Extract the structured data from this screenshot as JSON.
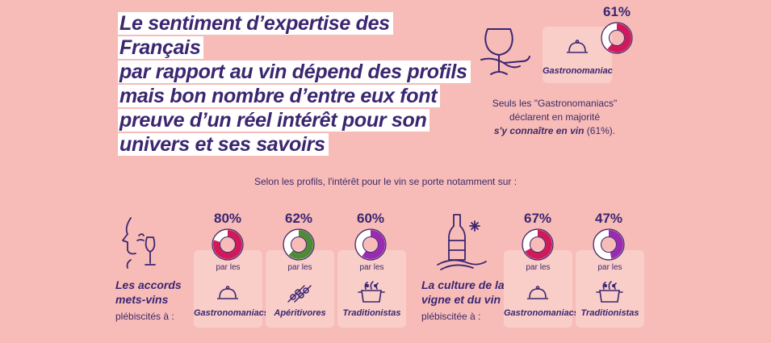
{
  "headline": {
    "lines": [
      "Le sentiment d’expertise des Français",
      "par rapport au vin dépend des profils",
      "mais bon nombre d’entre eux font",
      "preuve d’un réel intérêt pour son",
      "univers et ses savoirs"
    ]
  },
  "top": {
    "percent": "61%",
    "value": 0.61,
    "profile": "Gastronomaniac",
    "note_line1": "Seuls les \"Gastronomaniacs\"",
    "note_line2": "déclarent en majorité",
    "note_emph": "s'y connaître en vin",
    "note_tail": " (61%)."
  },
  "intro": "Selon les profils, l'intérêt pour le vin se porte notamment sur :",
  "left_block": {
    "title_line1": "Les accords",
    "title_line2": "mets-vins",
    "subtitle": "plébiscités à :",
    "items": [
      {
        "percent": "80%",
        "value": 0.8,
        "par": "par les",
        "label": "Gastronomaniacs",
        "color": "#d1195a"
      },
      {
        "percent": "62%",
        "value": 0.62,
        "par": "par les",
        "label": "Apéritivores",
        "color": "#4f8a36"
      },
      {
        "percent": "60%",
        "value": 0.6,
        "par": "par les",
        "label": "Traditionistas",
        "color": "#9a2bb0"
      }
    ]
  },
  "right_block": {
    "title_line1": "La culture de la",
    "title_line2": "vigne et du vin",
    "subtitle": "plébiscitée à :",
    "items": [
      {
        "percent": "67%",
        "value": 0.67,
        "par": "par les",
        "label": "Gastronomaniacs",
        "color": "#d1195a"
      },
      {
        "percent": "47%",
        "value": 0.47,
        "par": "par les",
        "label": "Traditionistas",
        "color": "#9a2bb0"
      }
    ]
  },
  "colors": {
    "background": "#f7bcb8",
    "card": "#f9cdc8",
    "text": "#3b2670",
    "ring_track": "#ffffff"
  }
}
